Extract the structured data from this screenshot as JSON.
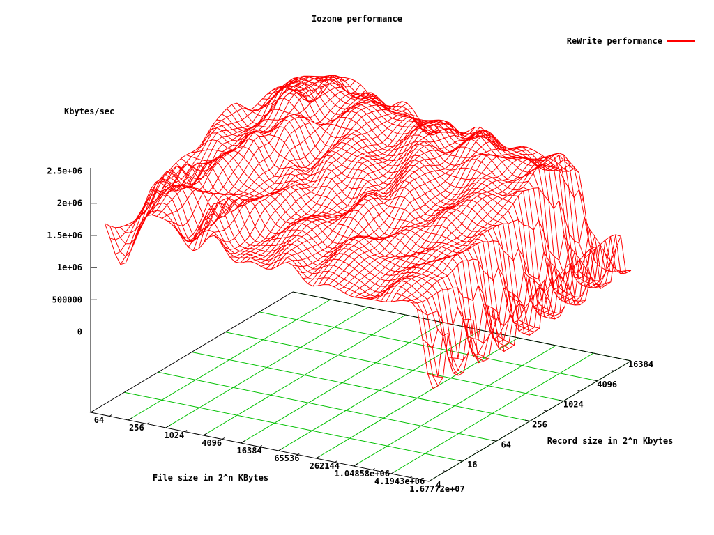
{
  "title": "Iozone performance",
  "legend": {
    "label": "ReWrite performance",
    "color": "#ff0000"
  },
  "colors": {
    "mesh": "#ff0000",
    "grid": "#00c000",
    "axis": "#000000",
    "background": "#ffffff",
    "text": "#000000"
  },
  "chart_data": {
    "type": "surface",
    "title": "Iozone performance",
    "zlabel": "Kbytes/sec",
    "xlabel": "File size in 2^n KBytes",
    "ylabel": "Record size in 2^n Kbytes",
    "series": [
      {
        "name": "ReWrite performance",
        "color": "#ff0000"
      }
    ],
    "x_scale": "log2",
    "y_scale": "log2",
    "x_range": [
      64,
      16777216
    ],
    "y_range": [
      4,
      16384
    ],
    "z_range": [
      0,
      2500000
    ],
    "x_tick_labels": [
      "64",
      "256",
      "1024",
      "4096",
      "16384",
      "65536",
      "262144",
      "1.04858e+06",
      "4.1943e+06",
      "1.67772e+07"
    ],
    "y_tick_labels": [
      "4",
      "16",
      "64",
      "256",
      "1024",
      "4096",
      "16384"
    ],
    "z_tick_labels": [
      "0",
      "500000",
      "1e+06",
      "1.5e+06",
      "2e+06",
      "2.5e+06"
    ],
    "grid": true,
    "legend_position": "top-right",
    "sample_grid": {
      "file_sizes_kbytes": [
        64,
        256,
        1024,
        4096,
        16384,
        65536,
        262144,
        1048576,
        4194304,
        16777216
      ],
      "record_sizes_kbytes": [
        4,
        16,
        64,
        256,
        1024,
        4096,
        16384
      ],
      "kbytes_per_sec": [
        [
          1600000,
          1500000,
          1850000,
          1600000,
          1520000,
          1480000,
          1430000,
          1360000,
          1360000,
          300000
        ],
        [
          1700000,
          1580000,
          1950000,
          1700000,
          1620000,
          1570000,
          1520000,
          1450000,
          1440000,
          250000
        ],
        [
          1800000,
          1700000,
          2100000,
          1850000,
          1750000,
          1700000,
          1650000,
          1560000,
          1550000,
          400000
        ],
        [
          1950000,
          1900000,
          2250000,
          2000000,
          1900000,
          1850000,
          1780000,
          1680000,
          1650000,
          150000
        ],
        [
          2050000,
          2000000,
          2400000,
          2150000,
          2050000,
          1980000,
          1900000,
          1780000,
          1200000,
          900000
        ],
        [
          2100000,
          2100000,
          2500000,
          2250000,
          2150000,
          2050000,
          1950000,
          1820000,
          600000,
          200000
        ],
        [
          2000000,
          2050000,
          2350000,
          2150000,
          2050000,
          1950000,
          1850000,
          1700000,
          350000,
          190000
        ]
      ]
    },
    "surface_model": {
      "nu": 64,
      "nv": 40,
      "u_start": 0.03,
      "v_start": 0.02,
      "base": 1.98,
      "step1_pos": 0.34,
      "step1_drop": 0.14,
      "step2_pos": 0.62,
      "step2_drop": 0.16,
      "hump_amp": 0.3,
      "hump_pos": 0.175,
      "hump_sigma": 0.075,
      "rv_front": 0.3,
      "rv_peak": 0.3,
      "rv_peak_pos": 0.8,
      "rv_peak_sigma": 0.3,
      "rv_backdrop": 0.24,
      "rv_backdrop_pos": 0.86,
      "rv_backdrop_w": 0.14,
      "rv_off": 0.02,
      "dip_amp": 0.45,
      "dip_pos": 0.085,
      "dip_su": 0.042,
      "dip_sv": 0.12,
      "noise1": 0.085,
      "noise2": 0.06,
      "noise3": 0.05,
      "namp": 1.3,
      "cliff_u0": 0.95,
      "cliff_slope": 0.115,
      "cliff_w": 0.05,
      "curt_base": 0.13,
      "curt_amp": 1.3,
      "curt_freq": 8.3,
      "curt_skew": 2.5,
      "curt_phase": 0.95,
      "zmin": 0.04,
      "zmax": 2.58
    }
  }
}
